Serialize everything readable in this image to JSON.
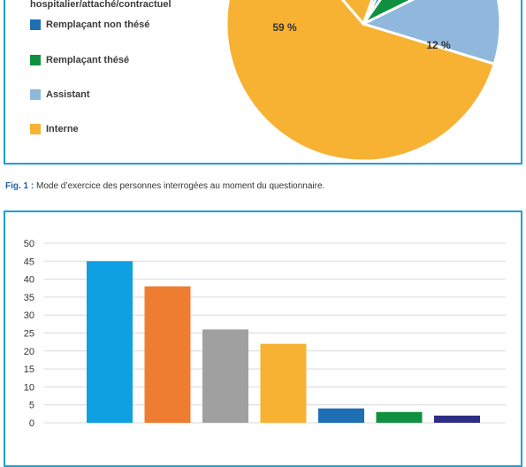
{
  "chart_data": [
    {
      "type": "pie",
      "legend": [
        {
          "label": "hospitalier/attaché/contractuel",
          "color": "#1f5fa8"
        },
        {
          "label": "Remplaçant non thésé",
          "color": "#1f6fb5"
        },
        {
          "label": "Remplaçant thésé",
          "color": "#10913f"
        },
        {
          "label": "Assistant",
          "color": "#8fb8dc"
        },
        {
          "label": "Interne",
          "color": "#f7b233"
        }
      ],
      "slices": [
        {
          "name": "Remplaçant thésé",
          "value": 8,
          "label": "8 %",
          "color": "#10913f"
        },
        {
          "name": "Assistant",
          "value": 12,
          "label": "12 %",
          "color": "#8fb8dc"
        },
        {
          "name": "Interne",
          "value": 59,
          "label": "59 %",
          "color": "#f7b233"
        }
      ]
    },
    {
      "type": "bar",
      "categories": [
        "",
        "",
        "",
        "",
        "",
        "",
        ""
      ],
      "values": [
        45,
        38,
        26,
        22,
        4,
        3,
        2
      ],
      "colors": [
        "#0ea0e0",
        "#ef7d31",
        "#a0a0a0",
        "#f7b233",
        "#1f6fb5",
        "#10913f",
        "#2d2e83"
      ],
      "ylim": [
        0,
        50
      ],
      "yticks": [
        0,
        5,
        10,
        15,
        20,
        25,
        30,
        35,
        40,
        45,
        50
      ],
      "grid": true
    }
  ],
  "caption": {
    "prefix": "Fig. 1 :",
    "text": " Mode d’exercice des personnes interrogées au moment du questionnaire."
  }
}
